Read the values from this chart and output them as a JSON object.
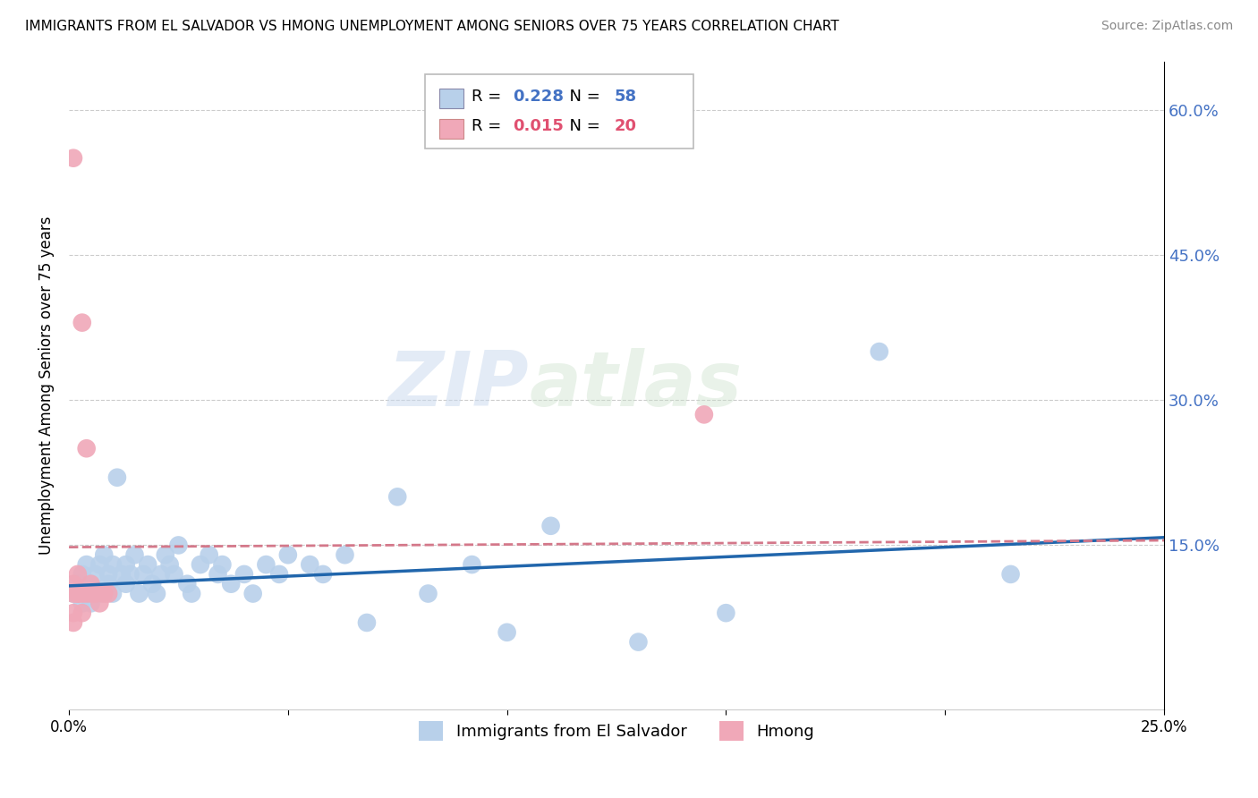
{
  "title": "IMMIGRANTS FROM EL SALVADOR VS HMONG UNEMPLOYMENT AMONG SENIORS OVER 75 YEARS CORRELATION CHART",
  "source": "Source: ZipAtlas.com",
  "ylabel": "Unemployment Among Seniors over 75 years",
  "xlim": [
    0.0,
    0.25
  ],
  "ylim": [
    -0.02,
    0.65
  ],
  "yticks": [
    0.0,
    0.15,
    0.3,
    0.45,
    0.6
  ],
  "ytick_labels": [
    "",
    "15.0%",
    "30.0%",
    "45.0%",
    "60.0%"
  ],
  "xticks": [
    0.0,
    0.05,
    0.1,
    0.15,
    0.2,
    0.25
  ],
  "xtick_labels": [
    "0.0%",
    "",
    "",
    "",
    "",
    "25.0%"
  ],
  "legend_el_salvador": "Immigrants from El Salvador",
  "legend_hmong": "Hmong",
  "R_el_salvador": 0.228,
  "N_el_salvador": 58,
  "R_hmong": 0.015,
  "N_hmong": 20,
  "el_salvador_color": "#b8d0ea",
  "hmong_color": "#f0a8b8",
  "line_el_salvador_color": "#2166ac",
  "line_hmong_color": "#d4788a",
  "watermark_zip": "ZIP",
  "watermark_atlas": "atlas",
  "el_salvador_x": [
    0.001,
    0.002,
    0.003,
    0.003,
    0.004,
    0.004,
    0.005,
    0.005,
    0.006,
    0.006,
    0.007,
    0.007,
    0.008,
    0.009,
    0.009,
    0.01,
    0.01,
    0.011,
    0.012,
    0.013,
    0.013,
    0.014,
    0.015,
    0.016,
    0.017,
    0.018,
    0.019,
    0.02,
    0.021,
    0.022,
    0.023,
    0.024,
    0.025,
    0.027,
    0.028,
    0.03,
    0.032,
    0.034,
    0.035,
    0.037,
    0.04,
    0.042,
    0.045,
    0.048,
    0.05,
    0.055,
    0.058,
    0.063,
    0.068,
    0.075,
    0.082,
    0.092,
    0.1,
    0.11,
    0.13,
    0.15,
    0.185,
    0.215
  ],
  "el_salvador_y": [
    0.1,
    0.11,
    0.09,
    0.12,
    0.1,
    0.13,
    0.11,
    0.09,
    0.12,
    0.1,
    0.13,
    0.1,
    0.14,
    0.11,
    0.12,
    0.13,
    0.1,
    0.22,
    0.12,
    0.11,
    0.13,
    0.12,
    0.14,
    0.1,
    0.12,
    0.13,
    0.11,
    0.1,
    0.12,
    0.14,
    0.13,
    0.12,
    0.15,
    0.11,
    0.1,
    0.13,
    0.14,
    0.12,
    0.13,
    0.11,
    0.12,
    0.1,
    0.13,
    0.12,
    0.14,
    0.13,
    0.12,
    0.14,
    0.07,
    0.2,
    0.1,
    0.13,
    0.06,
    0.17,
    0.05,
    0.08,
    0.35,
    0.12
  ],
  "hmong_x": [
    0.001,
    0.001,
    0.001,
    0.001,
    0.001,
    0.002,
    0.002,
    0.002,
    0.003,
    0.003,
    0.003,
    0.004,
    0.004,
    0.005,
    0.005,
    0.006,
    0.007,
    0.008,
    0.009,
    0.145
  ],
  "hmong_y": [
    0.1,
    0.11,
    0.08,
    0.55,
    0.07,
    0.1,
    0.12,
    0.1,
    0.1,
    0.08,
    0.38,
    0.25,
    0.1,
    0.1,
    0.11,
    0.1,
    0.09,
    0.1,
    0.1,
    0.285
  ],
  "el_salvador_line_x": [
    0.0,
    0.25
  ],
  "el_salvador_line_y": [
    0.108,
    0.158
  ],
  "hmong_line_x": [
    0.0,
    0.25
  ],
  "hmong_line_y": [
    0.148,
    0.155
  ]
}
